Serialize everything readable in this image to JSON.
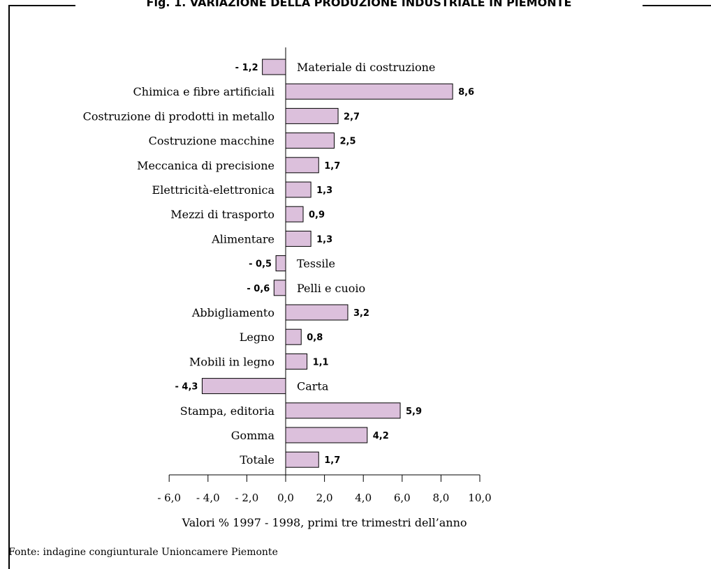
{
  "figure": {
    "title": "Fig. 1. VARIAZIONE DELLA PRODUZIONE INDUSTRIALE IN PIEMONTE",
    "source": "Fonte: indagine congiunturale Unioncamere Piemonte"
  },
  "chart_data": {
    "type": "bar",
    "orientation": "horizontal",
    "bar_color": "#dcc0dc",
    "bar_edge_color": "#000000",
    "categories": [
      "Materiale di costruzione",
      "Chimica e fibre artificiali",
      "Costruzione di prodotti in metallo",
      "Costruzione macchine",
      "Meccanica di precisione",
      "Elettricità-elettronica",
      "Mezzi di trasporto",
      "Alimentare",
      "Tessile",
      "Pelli e cuoio",
      "Abbigliamento",
      "Legno",
      "Mobili in legno",
      "Carta",
      "Stampa, editoria",
      "Gomma",
      "Totale"
    ],
    "values": [
      -1.2,
      8.6,
      2.7,
      2.5,
      1.7,
      1.3,
      0.9,
      1.3,
      -0.5,
      -0.6,
      3.2,
      0.8,
      1.1,
      -4.3,
      5.9,
      4.2,
      1.7
    ],
    "value_labels": [
      "- 1,2",
      "8,6",
      "2,7",
      "2,5",
      "1,7",
      "1,3",
      "0,9",
      "1,3",
      "- 0,5",
      "- 0,6",
      "3,2",
      "0,8",
      "1,1",
      "- 4,3",
      "5,9",
      "4,2",
      "1,7"
    ],
    "xlim": [
      -6,
      10
    ],
    "x_ticks": [
      -6,
      -4,
      -2,
      0,
      2,
      4,
      6,
      8,
      10
    ],
    "x_tick_labels": [
      "- 6,0",
      "- 4,0",
      "- 2,0",
      "0,0",
      "2,0",
      "4,0",
      "6,0",
      "8,0",
      "10,0"
    ],
    "xlabel": "Valori % 1997 - 1998, primi tre trimestri dell’anno",
    "grid": false,
    "legend": "none"
  }
}
